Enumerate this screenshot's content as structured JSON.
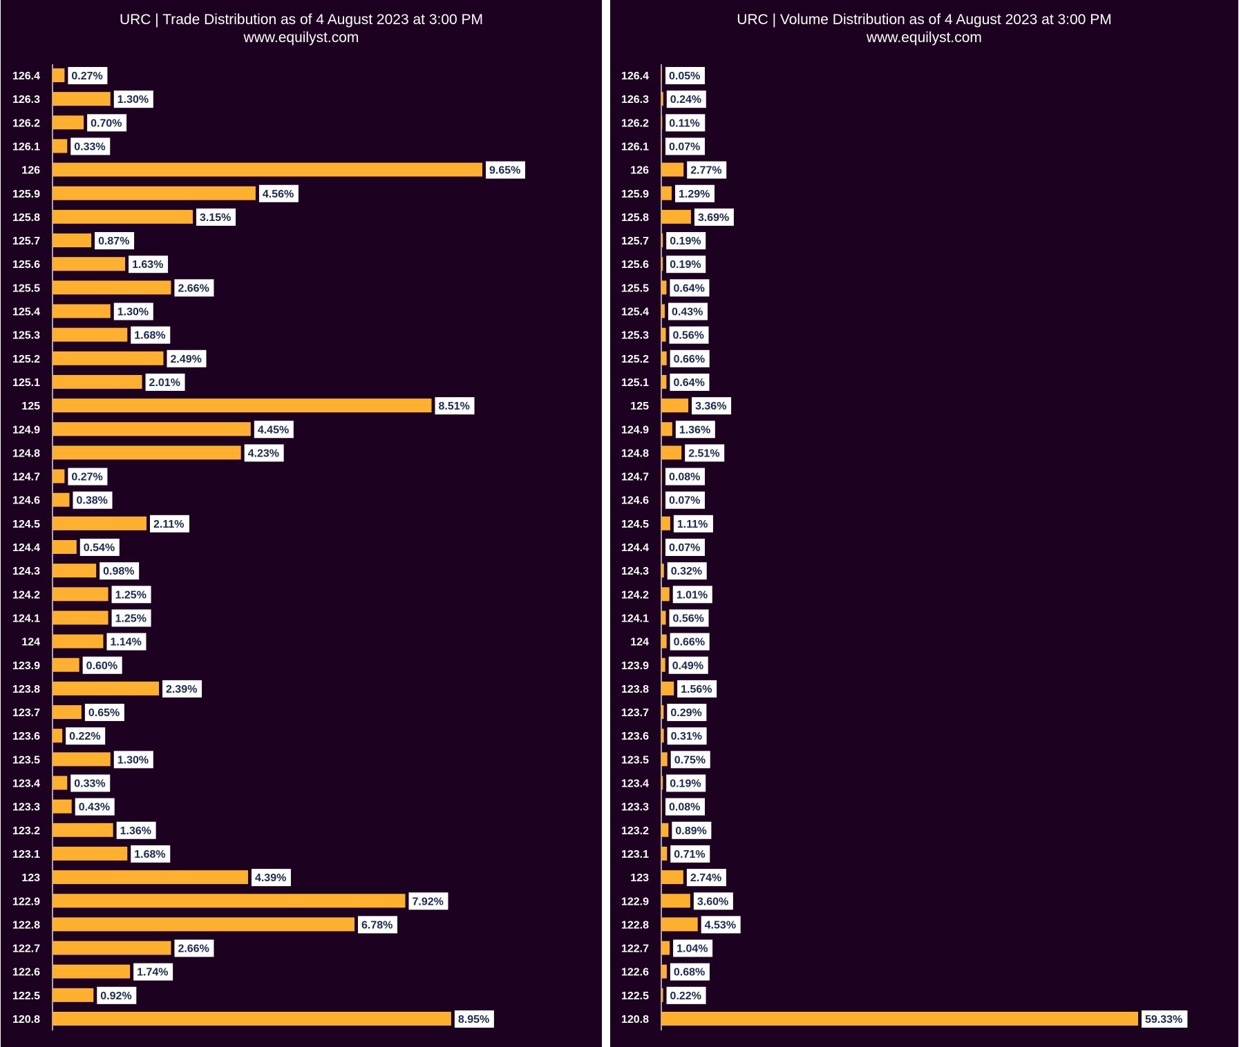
{
  "chart_data": [
    {
      "type": "bar",
      "orientation": "horizontal",
      "title": "URC | Trade Distribution as of 4 August 2023 at 3:00 PM",
      "subtitle": "www.equilyst.com",
      "bar_color": "#ffb02e",
      "background": "#1c0220",
      "categories": [
        "126.4",
        "126.3",
        "126.2",
        "126.1",
        "126",
        "125.9",
        "125.8",
        "125.7",
        "125.6",
        "125.5",
        "125.4",
        "125.3",
        "125.2",
        "125.1",
        "125",
        "124.9",
        "124.8",
        "124.7",
        "124.6",
        "124.5",
        "124.4",
        "124.3",
        "124.2",
        "124.1",
        "124",
        "123.9",
        "123.8",
        "123.7",
        "123.6",
        "123.5",
        "123.4",
        "123.3",
        "123.2",
        "123.1",
        "123",
        "122.9",
        "122.8",
        "122.7",
        "122.6",
        "122.5",
        "120.8"
      ],
      "values": [
        0.27,
        1.3,
        0.7,
        0.33,
        9.65,
        4.56,
        3.15,
        0.87,
        1.63,
        2.66,
        1.3,
        1.68,
        2.49,
        2.01,
        8.51,
        4.45,
        4.23,
        0.27,
        0.38,
        2.11,
        0.54,
        0.98,
        1.25,
        1.25,
        1.14,
        0.6,
        2.39,
        0.65,
        0.22,
        1.3,
        0.33,
        0.43,
        1.36,
        1.68,
        4.39,
        7.92,
        6.78,
        2.66,
        1.74,
        0.92,
        8.95
      ],
      "value_labels": [
        "0.27%",
        "1.30%",
        "0.70%",
        "0.33%",
        "9.65%",
        "4.56%",
        "3.15%",
        "0.87%",
        "1.63%",
        "2.66%",
        "1.30%",
        "1.68%",
        "2.49%",
        "2.01%",
        "8.51%",
        "4.45%",
        "4.23%",
        "0.27%",
        "0.38%",
        "2.11%",
        "0.54%",
        "0.98%",
        "1.25%",
        "1.25%",
        "1.14%",
        "0.60%",
        "2.39%",
        "0.65%",
        "0.22%",
        "1.30%",
        "0.33%",
        "0.43%",
        "1.36%",
        "1.68%",
        "4.39%",
        "7.92%",
        "6.78%",
        "2.66%",
        "1.74%",
        "0.92%",
        "8.95%"
      ],
      "xlim": [
        0,
        9.65
      ],
      "grid": false,
      "legend": "none"
    },
    {
      "type": "bar",
      "orientation": "horizontal",
      "title": "URC | Volume Distribution as of 4 August 2023 at 3:00 PM",
      "subtitle": "www.equilyst.com",
      "bar_color": "#ffb02e",
      "background": "#1c0220",
      "categories": [
        "126.4",
        "126.3",
        "126.2",
        "126.1",
        "126",
        "125.9",
        "125.8",
        "125.7",
        "125.6",
        "125.5",
        "125.4",
        "125.3",
        "125.2",
        "125.1",
        "125",
        "124.9",
        "124.8",
        "124.7",
        "124.6",
        "124.5",
        "124.4",
        "124.3",
        "124.2",
        "124.1",
        "124",
        "123.9",
        "123.8",
        "123.7",
        "123.6",
        "123.5",
        "123.4",
        "123.3",
        "123.2",
        "123.1",
        "123",
        "122.9",
        "122.8",
        "122.7",
        "122.6",
        "122.5",
        "120.8"
      ],
      "values": [
        0.05,
        0.24,
        0.11,
        0.07,
        2.77,
        1.29,
        3.69,
        0.19,
        0.19,
        0.64,
        0.43,
        0.56,
        0.66,
        0.64,
        3.36,
        1.36,
        2.51,
        0.08,
        0.07,
        1.11,
        0.07,
        0.32,
        1.01,
        0.56,
        0.66,
        0.49,
        1.56,
        0.29,
        0.31,
        0.75,
        0.19,
        0.08,
        0.89,
        0.71,
        2.74,
        3.6,
        4.53,
        1.04,
        0.68,
        0.22,
        59.33
      ],
      "value_labels": [
        "0.05%",
        "0.24%",
        "0.11%",
        "0.07%",
        "2.77%",
        "1.29%",
        "3.69%",
        "0.19%",
        "0.19%",
        "0.64%",
        "0.43%",
        "0.56%",
        "0.66%",
        "0.64%",
        "3.36%",
        "1.36%",
        "2.51%",
        "0.08%",
        "0.07%",
        "1.11%",
        "0.07%",
        "0.32%",
        "1.01%",
        "0.56%",
        "0.66%",
        "0.49%",
        "1.56%",
        "0.29%",
        "0.31%",
        "0.75%",
        "0.19%",
        "0.08%",
        "0.89%",
        "0.71%",
        "2.74%",
        "3.60%",
        "4.53%",
        "1.04%",
        "0.68%",
        "0.22%",
        "59.33%"
      ],
      "xlim": [
        0,
        59.33
      ],
      "grid": false,
      "legend": "none"
    }
  ]
}
